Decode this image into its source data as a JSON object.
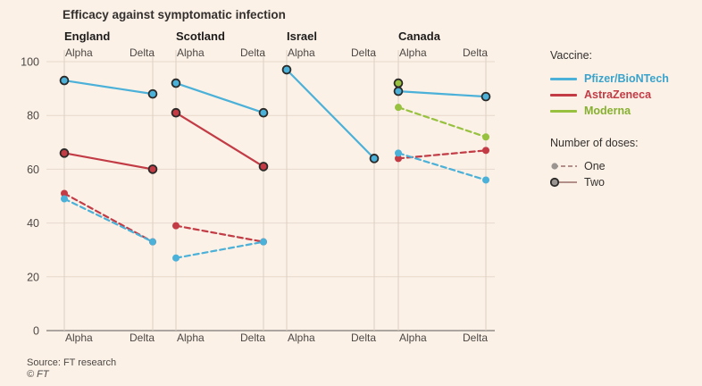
{
  "title": "Efficacy against symptomatic infection",
  "source": "Source: FT research",
  "copyright": "© FT",
  "colors": {
    "background": "#fbf1e7",
    "grid": "#e7d9cc",
    "pfizer": "#4bb1d8",
    "astrazeneca": "#c23b45",
    "moderna": "#97c13f",
    "one_dose_marker": "#9a9590",
    "two_dose_edge": "#2c2a29"
  },
  "legend": {
    "vaccine_heading": "Vaccine:",
    "vaccines": [
      {
        "label": "Pfizer/BioNTech",
        "color": "#4bb1d8",
        "icon": "pfizer-line-swatch"
      },
      {
        "label": "AstraZeneca",
        "color": "#c23b45",
        "icon": "astrazeneca-line-swatch"
      },
      {
        "label": "Moderna",
        "color": "#97c13f",
        "icon": "moderna-line-swatch"
      }
    ],
    "doses_heading": "Number of doses:",
    "doses": [
      {
        "label": "One",
        "style": "dashed",
        "icon": "one-dose-dashed-swatch"
      },
      {
        "label": "Two",
        "style": "solid",
        "icon": "two-dose-solid-swatch"
      }
    ]
  },
  "chart_data": {
    "type": "line",
    "title": "Efficacy against symptomatic infection",
    "ylabel": "",
    "ylim": [
      0,
      100
    ],
    "yticks": [
      0,
      20,
      40,
      60,
      80,
      100
    ],
    "categories": [
      "Alpha",
      "Delta"
    ],
    "grid": true,
    "legend_position": "right",
    "panels": [
      {
        "name": "England",
        "series": [
          {
            "vaccine": "Pfizer/BioNTech",
            "doses": "Two",
            "values": [
              93,
              88
            ]
          },
          {
            "vaccine": "AstraZeneca",
            "doses": "Two",
            "values": [
              66,
              60
            ]
          },
          {
            "vaccine": "AstraZeneca",
            "doses": "One",
            "values": [
              51,
              33
            ]
          },
          {
            "vaccine": "Pfizer/BioNTech",
            "doses": "One",
            "values": [
              49,
              33
            ]
          }
        ]
      },
      {
        "name": "Scotland",
        "series": [
          {
            "vaccine": "Pfizer/BioNTech",
            "doses": "Two",
            "values": [
              92,
              81
            ]
          },
          {
            "vaccine": "AstraZeneca",
            "doses": "Two",
            "values": [
              81,
              61
            ]
          },
          {
            "vaccine": "AstraZeneca",
            "doses": "One",
            "values": [
              39,
              33
            ]
          },
          {
            "vaccine": "Pfizer/BioNTech",
            "doses": "One",
            "values": [
              27,
              33
            ]
          }
        ]
      },
      {
        "name": "Israel",
        "series": [
          {
            "vaccine": "Pfizer/BioNTech",
            "doses": "Two",
            "values": [
              97,
              64
            ]
          }
        ]
      },
      {
        "name": "Canada",
        "series": [
          {
            "vaccine": "Moderna",
            "doses": "One",
            "values": [
              83,
              72
            ]
          },
          {
            "vaccine": "AstraZeneca",
            "doses": "One",
            "values": [
              64,
              67
            ]
          },
          {
            "vaccine": "Pfizer/BioNTech",
            "doses": "One",
            "values": [
              66,
              56
            ]
          },
          {
            "vaccine": "Pfizer/BioNTech",
            "doses": "Two",
            "values": [
              89,
              87
            ]
          },
          {
            "vaccine": "Moderna",
            "doses": "Two",
            "values": [
              92,
              null
            ]
          }
        ]
      }
    ]
  }
}
